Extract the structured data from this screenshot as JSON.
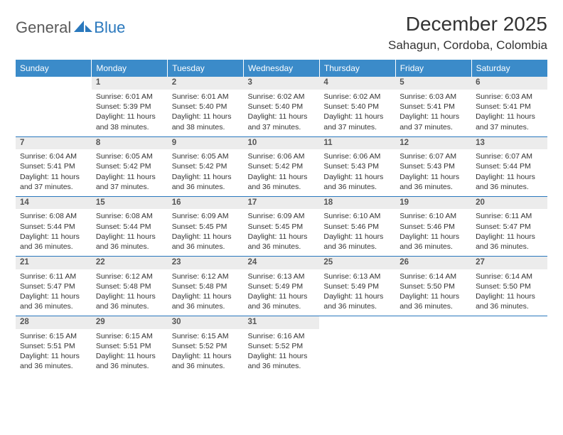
{
  "brand": {
    "part1": "General",
    "part2": "Blue"
  },
  "title": "December 2025",
  "location": "Sahagun, Cordoba, Colombia",
  "colors": {
    "header_bg": "#3b8bc9",
    "header_text": "#ffffff",
    "daynum_bg": "#ececec",
    "rule": "#2a78bd",
    "brand_gray": "#5a5a5a",
    "brand_blue": "#2a78bd"
  },
  "weekdays": [
    "Sunday",
    "Monday",
    "Tuesday",
    "Wednesday",
    "Thursday",
    "Friday",
    "Saturday"
  ],
  "weeks": [
    [
      null,
      {
        "n": "1",
        "sr": "6:01 AM",
        "ss": "5:39 PM",
        "dl": "11 hours and 38 minutes."
      },
      {
        "n": "2",
        "sr": "6:01 AM",
        "ss": "5:40 PM",
        "dl": "11 hours and 38 minutes."
      },
      {
        "n": "3",
        "sr": "6:02 AM",
        "ss": "5:40 PM",
        "dl": "11 hours and 37 minutes."
      },
      {
        "n": "4",
        "sr": "6:02 AM",
        "ss": "5:40 PM",
        "dl": "11 hours and 37 minutes."
      },
      {
        "n": "5",
        "sr": "6:03 AM",
        "ss": "5:41 PM",
        "dl": "11 hours and 37 minutes."
      },
      {
        "n": "6",
        "sr": "6:03 AM",
        "ss": "5:41 PM",
        "dl": "11 hours and 37 minutes."
      }
    ],
    [
      {
        "n": "7",
        "sr": "6:04 AM",
        "ss": "5:41 PM",
        "dl": "11 hours and 37 minutes."
      },
      {
        "n": "8",
        "sr": "6:05 AM",
        "ss": "5:42 PM",
        "dl": "11 hours and 37 minutes."
      },
      {
        "n": "9",
        "sr": "6:05 AM",
        "ss": "5:42 PM",
        "dl": "11 hours and 36 minutes."
      },
      {
        "n": "10",
        "sr": "6:06 AM",
        "ss": "5:42 PM",
        "dl": "11 hours and 36 minutes."
      },
      {
        "n": "11",
        "sr": "6:06 AM",
        "ss": "5:43 PM",
        "dl": "11 hours and 36 minutes."
      },
      {
        "n": "12",
        "sr": "6:07 AM",
        "ss": "5:43 PM",
        "dl": "11 hours and 36 minutes."
      },
      {
        "n": "13",
        "sr": "6:07 AM",
        "ss": "5:44 PM",
        "dl": "11 hours and 36 minutes."
      }
    ],
    [
      {
        "n": "14",
        "sr": "6:08 AM",
        "ss": "5:44 PM",
        "dl": "11 hours and 36 minutes."
      },
      {
        "n": "15",
        "sr": "6:08 AM",
        "ss": "5:44 PM",
        "dl": "11 hours and 36 minutes."
      },
      {
        "n": "16",
        "sr": "6:09 AM",
        "ss": "5:45 PM",
        "dl": "11 hours and 36 minutes."
      },
      {
        "n": "17",
        "sr": "6:09 AM",
        "ss": "5:45 PM",
        "dl": "11 hours and 36 minutes."
      },
      {
        "n": "18",
        "sr": "6:10 AM",
        "ss": "5:46 PM",
        "dl": "11 hours and 36 minutes."
      },
      {
        "n": "19",
        "sr": "6:10 AM",
        "ss": "5:46 PM",
        "dl": "11 hours and 36 minutes."
      },
      {
        "n": "20",
        "sr": "6:11 AM",
        "ss": "5:47 PM",
        "dl": "11 hours and 36 minutes."
      }
    ],
    [
      {
        "n": "21",
        "sr": "6:11 AM",
        "ss": "5:47 PM",
        "dl": "11 hours and 36 minutes."
      },
      {
        "n": "22",
        "sr": "6:12 AM",
        "ss": "5:48 PM",
        "dl": "11 hours and 36 minutes."
      },
      {
        "n": "23",
        "sr": "6:12 AM",
        "ss": "5:48 PM",
        "dl": "11 hours and 36 minutes."
      },
      {
        "n": "24",
        "sr": "6:13 AM",
        "ss": "5:49 PM",
        "dl": "11 hours and 36 minutes."
      },
      {
        "n": "25",
        "sr": "6:13 AM",
        "ss": "5:49 PM",
        "dl": "11 hours and 36 minutes."
      },
      {
        "n": "26",
        "sr": "6:14 AM",
        "ss": "5:50 PM",
        "dl": "11 hours and 36 minutes."
      },
      {
        "n": "27",
        "sr": "6:14 AM",
        "ss": "5:50 PM",
        "dl": "11 hours and 36 minutes."
      }
    ],
    [
      {
        "n": "28",
        "sr": "6:15 AM",
        "ss": "5:51 PM",
        "dl": "11 hours and 36 minutes."
      },
      {
        "n": "29",
        "sr": "6:15 AM",
        "ss": "5:51 PM",
        "dl": "11 hours and 36 minutes."
      },
      {
        "n": "30",
        "sr": "6:15 AM",
        "ss": "5:52 PM",
        "dl": "11 hours and 36 minutes."
      },
      {
        "n": "31",
        "sr": "6:16 AM",
        "ss": "5:52 PM",
        "dl": "11 hours and 36 minutes."
      },
      null,
      null,
      null
    ]
  ],
  "labels": {
    "sunrise": "Sunrise:",
    "sunset": "Sunset:",
    "daylight": "Daylight:"
  }
}
